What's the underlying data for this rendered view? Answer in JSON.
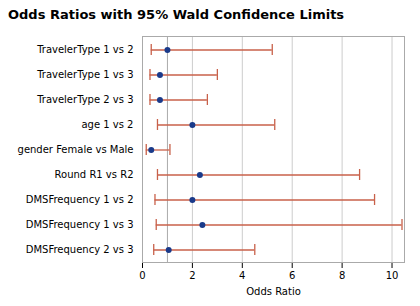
{
  "chart_data": {
    "type": "forest",
    "title": "Odds Ratios with 95% Wald Confidence Limits",
    "xlabel": "Odds Ratio",
    "orientation": "horizontal",
    "categories": [
      "TravelerType 1 vs 2",
      "TravelerType 1 vs 3",
      "TravelerType 2 vs 3",
      "age 1 vs 2",
      "gender Female vs Male",
      "Round R1 vs R2",
      "DMSFrequency 1 vs 2",
      "DMSFrequency 1 vs 3",
      "DMSFrequency 2 vs 3"
    ],
    "values": [
      1.0,
      0.7,
      0.7,
      2.0,
      0.35,
      2.3,
      2.0,
      2.4,
      1.05
    ],
    "color": "#1a3a8a",
    "error_bars": {
      "lower": [
        0.35,
        0.3,
        0.3,
        0.6,
        0.15,
        0.6,
        0.5,
        0.55,
        0.45
      ],
      "upper": [
        5.2,
        3.0,
        2.6,
        5.3,
        1.1,
        8.7,
        9.3,
        10.4,
        4.5
      ],
      "color": "#c8614a"
    },
    "reference_line": {
      "x": 1,
      "color": "#aaaaaa"
    },
    "xlim": [
      0,
      10.5
    ],
    "xticks": [
      0,
      2,
      4,
      6,
      8,
      10
    ],
    "grid": true
  }
}
